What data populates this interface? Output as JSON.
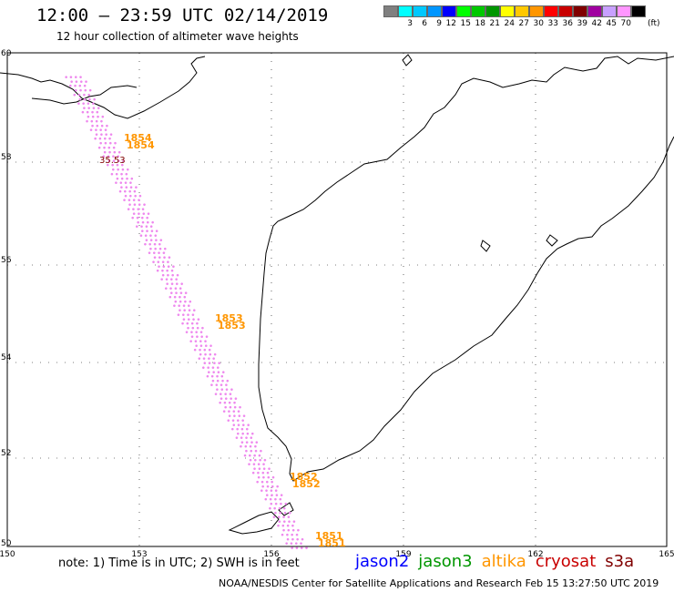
{
  "header": {
    "title": "12:00 – 23:59 UTC 02/14/2019",
    "subtitle": "12 hour collection of altimeter wave heights"
  },
  "scale": {
    "unit": "(ft)",
    "bins": [
      {
        "color": "#808080",
        "label": ""
      },
      {
        "color": "#00ffff",
        "label": "3"
      },
      {
        "color": "#00c8ff",
        "label": "6"
      },
      {
        "color": "#0096ff",
        "label": "9"
      },
      {
        "color": "#0000ff",
        "label": "12"
      },
      {
        "color": "#00ff00",
        "label": "15"
      },
      {
        "color": "#00c800",
        "label": "18"
      },
      {
        "color": "#009600",
        "label": "21"
      },
      {
        "color": "#ffff00",
        "label": "24"
      },
      {
        "color": "#ffc800",
        "label": "27"
      },
      {
        "color": "#ff9600",
        "label": "30"
      },
      {
        "color": "#ff0000",
        "label": "33"
      },
      {
        "color": "#c80000",
        "label": "36"
      },
      {
        "color": "#800000",
        "label": "39"
      },
      {
        "color": "#a000a0",
        "label": "42"
      },
      {
        "color": "#c8a0ff",
        "label": "45"
      },
      {
        "color": "#ff96ff",
        "label": "70"
      },
      {
        "color": "#000000",
        "label": ""
      }
    ]
  },
  "axes": {
    "lon_ticks": [
      "150",
      "153",
      "156",
      "159",
      "162",
      "165"
    ],
    "lat_ticks": [
      "60",
      "58",
      "56",
      "54",
      "52",
      "50"
    ]
  },
  "time_labels": [
    "1854",
    "1853",
    "1852",
    "1851"
  ],
  "highlight_value": "35.53",
  "notes": {
    "note": "note: 1) Time is in UTC; 2) SWH is in feet",
    "credit": "NOAA/NESDIS Center for Satellite Applications and Research   Feb 15 13:27:50 UTC 2019"
  },
  "satellites": [
    {
      "name": "jason2",
      "color": "#0000ff"
    },
    {
      "name": "jason3",
      "color": "#009600"
    },
    {
      "name": "altika",
      "color": "#ff9600"
    },
    {
      "name": "cryosat",
      "color": "#c80000"
    },
    {
      "name": "s3a",
      "color": "#800000"
    }
  ],
  "colors": {
    "track": "#ee88ee",
    "time_label": "#ff9600",
    "highlight": "#800000",
    "coast": "#000000"
  }
}
